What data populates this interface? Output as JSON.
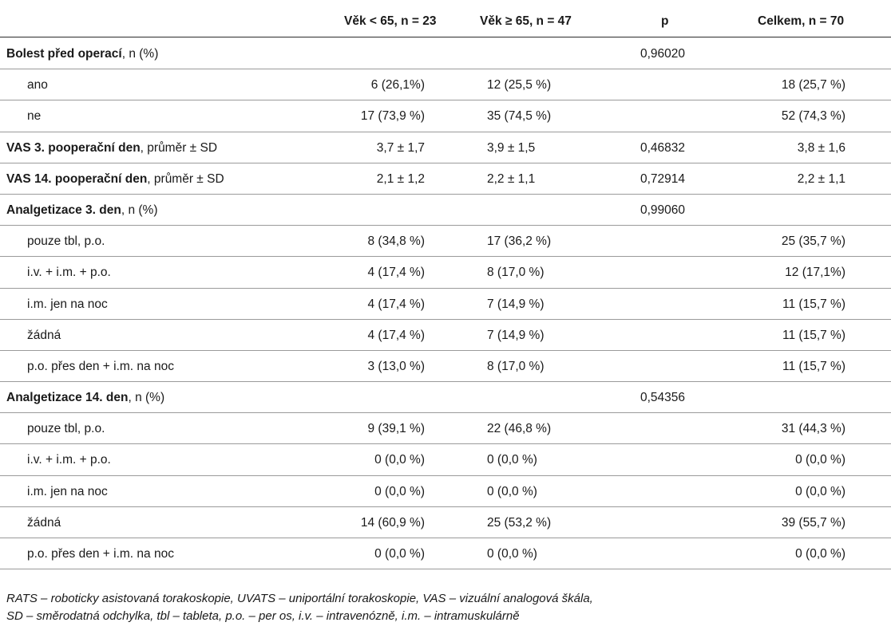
{
  "header": {
    "col1": "Věk < 65, n = 23",
    "col2": "Věk ≥ 65, n = 47",
    "col3": "p",
    "col4": "Celkem, n = 70"
  },
  "rows": [
    {
      "type": "group",
      "label_bold": "Bolest před operací",
      "label_rest": ", n (%)",
      "c1": "",
      "c2": "",
      "c3": "0,96020",
      "c4": ""
    },
    {
      "type": "sub",
      "label": "ano",
      "c1": "6 (26,1%)",
      "c2": "12 (25,5 %)",
      "c3": "",
      "c4": "18 (25,7 %)"
    },
    {
      "type": "sub",
      "label": "ne",
      "c1": "17 (73,9 %)",
      "c2": "35 (74,5 %)",
      "c3": "",
      "c4": "52 (74,3 %)"
    },
    {
      "type": "group",
      "label_bold": "VAS 3. pooperační den",
      "label_rest": ", průměr ± SD",
      "c1": "3,7 ± 1,7",
      "c2": "3,9 ± 1,5",
      "c3": "0,46832",
      "c4": "3,8 ± 1,6"
    },
    {
      "type": "group",
      "label_bold": "VAS 14. pooperační den",
      "label_rest": ", průměr ± SD",
      "c1": "2,1 ± 1,2",
      "c2": "2,2 ± 1,1",
      "c3": "0,72914",
      "c4": "2,2 ± 1,1"
    },
    {
      "type": "group",
      "label_bold": "Analgetizace 3. den",
      "label_rest": ", n (%)",
      "c1": "",
      "c2": "",
      "c3": "0,99060",
      "c4": ""
    },
    {
      "type": "sub",
      "label": "pouze tbl, p.o.",
      "c1": "8 (34,8 %)",
      "c2": "17 (36,2 %)",
      "c3": "",
      "c4": "25 (35,7 %)"
    },
    {
      "type": "sub",
      "label": "i.v. + i.m. + p.o.",
      "c1": "4 (17,4 %)",
      "c2": "8 (17,0 %)",
      "c3": "",
      "c4": "12 (17,1%)"
    },
    {
      "type": "sub",
      "label": "i.m. jen na noc",
      "c1": "4 (17,4 %)",
      "c2": "7 (14,9 %)",
      "c3": "",
      "c4": "11 (15,7 %)"
    },
    {
      "type": "sub",
      "label": "žádná",
      "c1": "4 (17,4 %)",
      "c2": "7 (14,9 %)",
      "c3": "",
      "c4": "11 (15,7 %)"
    },
    {
      "type": "sub",
      "label": "p.o. přes den + i.m. na noc",
      "c1": "3 (13,0 %)",
      "c2": "8 (17,0 %)",
      "c3": "",
      "c4": "11 (15,7 %)"
    },
    {
      "type": "group",
      "label_bold": "Analgetizace 14. den",
      "label_rest": ", n (%)",
      "c1": "",
      "c2": "",
      "c3": "0,54356",
      "c4": ""
    },
    {
      "type": "sub",
      "label": "pouze tbl, p.o.",
      "c1": "9 (39,1 %)",
      "c2": "22 (46,8 %)",
      "c3": "",
      "c4": "31 (44,3 %)"
    },
    {
      "type": "sub",
      "label": "i.v. + i.m. + p.o.",
      "c1": "0 (0,0 %)",
      "c2": "0 (0,0 %)",
      "c3": "",
      "c4": "0 (0,0 %)"
    },
    {
      "type": "sub",
      "label": "i.m. jen na noc",
      "c1": "0 (0,0 %)",
      "c2": "0 (0,0 %)",
      "c3": "",
      "c4": "0 (0,0 %)"
    },
    {
      "type": "sub",
      "label": "žádná",
      "c1": "14 (60,9 %)",
      "c2": "25 (53,2 %)",
      "c3": "",
      "c4": "39 (55,7 %)"
    },
    {
      "type": "sub",
      "label": "p.o. přes den + i.m. na noc",
      "c1": "0 (0,0 %)",
      "c2": "0 (0,0 %)",
      "c3": "",
      "c4": "0 (0,0 %)"
    }
  ],
  "footnote": {
    "line1": "RATS – roboticky asistovaná torakoskopie, UVATS – uniportální torakoskopie, VAS – vizuální analogová škála,",
    "line2": "SD – směrodatná odchylka, tbl – tableta, p.o. – per os, i.v. – intravenózně, i.m. – intramuskulárně"
  }
}
